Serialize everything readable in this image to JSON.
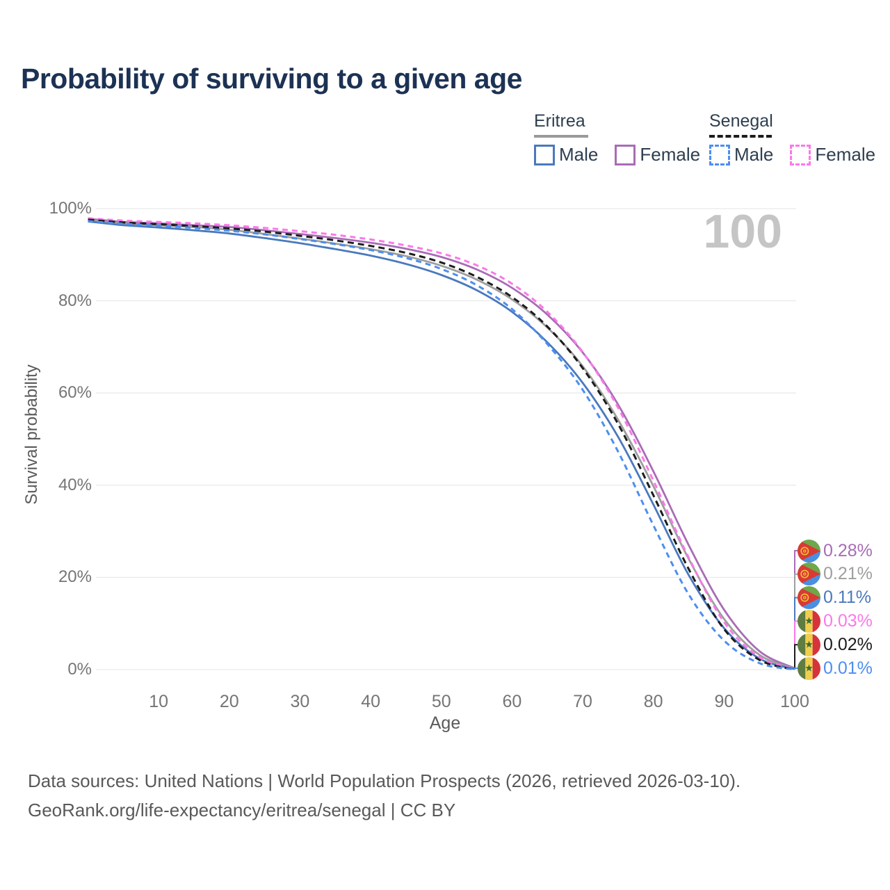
{
  "title": "Probability of surviving to a given age",
  "watermark_label": "100",
  "legend": {
    "groups": [
      {
        "name": "Eritrea",
        "underline": "solid",
        "items": [
          {
            "label": "Male"
          },
          {
            "label": "Female"
          }
        ]
      },
      {
        "name": "Senegal",
        "underline": "dashed",
        "items": [
          {
            "label": "Male"
          },
          {
            "label": "Female"
          }
        ]
      }
    ]
  },
  "colors": {
    "title": "#1c3254",
    "grid": "#e9e9e9",
    "tick": "#757575",
    "watermark": "#c5c5c5",
    "eritrea_male": "#4a79bd",
    "eritrea_female": "#a86cb5",
    "eritrea_both": "#9e9e9e",
    "senegal_male": "#4d8ef0",
    "senegal_female": "#fb78e9",
    "senegal_both": "#1c1c1c"
  },
  "chart_data": {
    "type": "line",
    "title": "Probability of surviving to a given age",
    "xlabel": "Age",
    "ylabel": "Survival probability",
    "xlim": [
      0,
      100
    ],
    "ylim": [
      0,
      100
    ],
    "grid": "horizontal",
    "x_ticks": [
      10,
      20,
      30,
      40,
      50,
      60,
      70,
      80,
      90,
      100
    ],
    "y_ticks": [
      {
        "value": 100,
        "label": "100%"
      },
      {
        "value": 80,
        "label": "80%"
      },
      {
        "value": 60,
        "label": "60%"
      },
      {
        "value": 40,
        "label": "40%"
      },
      {
        "value": 20,
        "label": "20%"
      },
      {
        "value": 0,
        "label": "0%"
      }
    ],
    "x": [
      0,
      5,
      10,
      15,
      20,
      25,
      30,
      35,
      40,
      45,
      50,
      55,
      60,
      65,
      70,
      75,
      80,
      85,
      90,
      95,
      100
    ],
    "series": [
      {
        "name": "Eritrea Female",
        "country": "Eritrea",
        "sex": "Female",
        "color": "#a86cb5",
        "dashed": false,
        "flag": "eritrea",
        "end_label": "0.28%",
        "values": [
          97.8,
          97.1,
          96.8,
          96.4,
          96.0,
          95.3,
          94.5,
          93.6,
          92.6,
          91.3,
          89.5,
          86.8,
          82.8,
          77.0,
          68.8,
          57.5,
          43.0,
          27.0,
          13.0,
          4.0,
          0.28
        ]
      },
      {
        "name": "Eritrea Both sexes",
        "country": "Eritrea",
        "sex": "Both",
        "color": "#9e9e9e",
        "dashed": false,
        "flag": "eritrea",
        "end_label": "0.21%",
        "values": [
          97.5,
          96.8,
          96.4,
          96.0,
          95.4,
          94.5,
          93.5,
          92.4,
          91.2,
          89.7,
          87.6,
          84.6,
          80.3,
          74.2,
          65.8,
          54.2,
          39.8,
          24.0,
          11.0,
          3.2,
          0.21
        ]
      },
      {
        "name": "Eritrea Male",
        "country": "Eritrea",
        "sex": "Male",
        "color": "#4a79bd",
        "dashed": false,
        "flag": "eritrea",
        "end_label": "0.11%",
        "values": [
          97.2,
          96.4,
          95.9,
          95.3,
          94.6,
          93.6,
          92.5,
          91.2,
          89.8,
          88.0,
          85.6,
          82.3,
          77.6,
          71.0,
          62.2,
          50.5,
          35.8,
          20.5,
          9.0,
          2.4,
          0.11
        ]
      },
      {
        "name": "Senegal Female",
        "country": "Senegal",
        "sex": "Female",
        "color": "#fb78e9",
        "dashed": true,
        "flag": "senegal",
        "end_label": "0.03%",
        "values": [
          97.9,
          97.4,
          97.1,
          96.8,
          96.4,
          95.8,
          95.1,
          94.3,
          93.3,
          92.0,
          90.3,
          87.7,
          83.7,
          77.6,
          68.9,
          56.8,
          41.0,
          24.3,
          10.3,
          2.7,
          0.03
        ]
      },
      {
        "name": "Senegal Both sexes",
        "country": "Senegal",
        "sex": "Both",
        "color": "#1c1c1c",
        "dashed": true,
        "flag": "senegal",
        "end_label": "0.02%",
        "values": [
          97.6,
          97.0,
          96.6,
          96.2,
          95.7,
          95.0,
          94.1,
          93.1,
          91.9,
          90.4,
          88.3,
          85.2,
          80.8,
          74.4,
          65.4,
          53.3,
          37.8,
          21.8,
          8.8,
          2.1,
          0.02
        ]
      },
      {
        "name": "Senegal Male",
        "country": "Senegal",
        "sex": "Male",
        "color": "#4d8ef0",
        "dashed": true,
        "flag": "senegal",
        "end_label": "0.01%",
        "values": [
          97.3,
          96.7,
          96.3,
          95.8,
          95.2,
          94.4,
          93.4,
          92.3,
          91.0,
          89.3,
          86.9,
          83.4,
          78.2,
          70.6,
          60.7,
          47.3,
          31.3,
          16.3,
          6.3,
          1.4,
          0.01
        ]
      }
    ],
    "legend_position": "top-right",
    "annotations": {
      "hover_age": "100"
    }
  },
  "icons": {
    "eritrea_flag": "eritrea-flag-icon",
    "senegal_flag": "senegal-flag-icon"
  },
  "footer": {
    "line1": "Data sources: United Nations | World Population Prospects (2026, retrieved 2026-03-10).",
    "line2": "GeoRank.org/life-expectancy/eritrea/senegal | CC BY"
  }
}
